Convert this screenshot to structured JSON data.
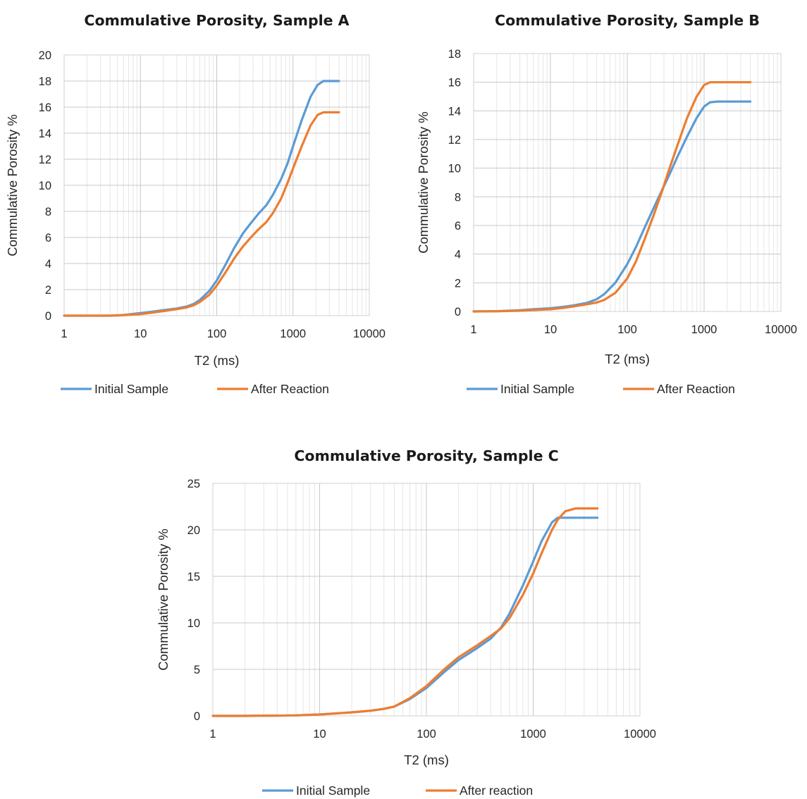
{
  "chart_data": [
    {
      "type": "line",
      "title": "Commulative Porosity, Sample A",
      "xlabel": "T2 (ms)",
      "ylabel": "Commulative Porosity %",
      "x_scale": "log",
      "xlim": [
        1,
        10000
      ],
      "ylim": [
        0,
        20
      ],
      "x_ticks": [
        "1",
        "10",
        "100",
        "1000",
        "10000"
      ],
      "y_ticks": [
        "0",
        "2",
        "4",
        "6",
        "8",
        "10",
        "12",
        "14",
        "16",
        "18",
        "20"
      ],
      "grid": true,
      "legend_position": "bottom",
      "series": [
        {
          "name": "Initial Sample",
          "color": "#5b9bd5",
          "x": [
            1,
            2,
            4,
            6,
            10,
            15,
            20,
            30,
            40,
            50,
            60,
            80,
            100,
            130,
            170,
            220,
            280,
            350,
            450,
            550,
            700,
            850,
            1000,
            1300,
            1700,
            2100,
            2500,
            3000,
            4000
          ],
          "y": [
            0,
            0,
            0,
            0.05,
            0.2,
            0.32,
            0.42,
            0.55,
            0.7,
            0.9,
            1.2,
            1.9,
            2.7,
            3.9,
            5.2,
            6.3,
            7.1,
            7.8,
            8.5,
            9.3,
            10.5,
            11.7,
            13.0,
            15.0,
            16.8,
            17.7,
            18.0,
            18.0,
            18.0
          ]
        },
        {
          "name": "After Reaction",
          "color": "#ed7d31",
          "x": [
            1,
            2,
            4,
            6,
            10,
            15,
            20,
            30,
            40,
            50,
            60,
            80,
            100,
            130,
            170,
            220,
            280,
            350,
            450,
            550,
            700,
            850,
            1000,
            1300,
            1700,
            2100,
            2500,
            3000,
            4000
          ],
          "y": [
            0,
            0,
            0,
            0.03,
            0.12,
            0.25,
            0.35,
            0.5,
            0.62,
            0.8,
            1.05,
            1.6,
            2.3,
            3.3,
            4.4,
            5.3,
            6.0,
            6.6,
            7.2,
            7.9,
            9.0,
            10.2,
            11.3,
            13.0,
            14.6,
            15.4,
            15.6,
            15.6,
            15.6
          ]
        }
      ]
    },
    {
      "type": "line",
      "title": "Commulative Porosity, Sample B",
      "xlabel": "T2 (ms)",
      "ylabel": "Commulative Porosity %",
      "x_scale": "log",
      "xlim": [
        1,
        10000
      ],
      "ylim": [
        0,
        18
      ],
      "x_ticks": [
        "1",
        "10",
        "100",
        "1000",
        "10000"
      ],
      "y_ticks": [
        "0",
        "2",
        "4",
        "6",
        "8",
        "10",
        "12",
        "14",
        "16",
        "18"
      ],
      "grid": true,
      "legend_position": "bottom",
      "series": [
        {
          "name": "Initial Sample",
          "color": "#5b9bd5",
          "x": [
            1,
            2,
            4,
            6,
            10,
            15,
            20,
            30,
            40,
            50,
            70,
            100,
            130,
            170,
            220,
            280,
            350,
            450,
            600,
            800,
            1000,
            1200,
            1500,
            2000,
            3000,
            4000
          ],
          "y": [
            0,
            0.02,
            0.08,
            0.15,
            0.22,
            0.33,
            0.42,
            0.6,
            0.85,
            1.2,
            2.0,
            3.3,
            4.5,
            5.9,
            7.2,
            8.4,
            9.5,
            10.8,
            12.2,
            13.5,
            14.3,
            14.6,
            14.65,
            14.65,
            14.65,
            14.65
          ]
        },
        {
          "name": "After Reaction",
          "color": "#ed7d31",
          "x": [
            1,
            2,
            4,
            6,
            10,
            15,
            20,
            30,
            40,
            50,
            70,
            100,
            130,
            170,
            220,
            280,
            350,
            450,
            600,
            800,
            1000,
            1200,
            1500,
            2000,
            3000,
            4000
          ],
          "y": [
            0,
            0.01,
            0.05,
            0.1,
            0.15,
            0.25,
            0.35,
            0.5,
            0.62,
            0.8,
            1.3,
            2.3,
            3.5,
            5.1,
            6.7,
            8.3,
            9.9,
            11.6,
            13.5,
            15.0,
            15.8,
            16.0,
            16.0,
            16.0,
            16.0,
            16.0
          ]
        }
      ]
    },
    {
      "type": "line",
      "title": "Commulative Porosity, Sample C",
      "xlabel": "T2 (ms)",
      "ylabel": "Commulative Porosity %",
      "x_scale": "log",
      "xlim": [
        1,
        10000
      ],
      "ylim": [
        0,
        25
      ],
      "x_ticks": [
        "1",
        "10",
        "100",
        "1000",
        "10000"
      ],
      "y_ticks": [
        "0",
        "5",
        "10",
        "15",
        "20",
        "25"
      ],
      "grid": true,
      "legend_position": "bottom",
      "series": [
        {
          "name": "Initial Sample",
          "color": "#5b9bd5",
          "x": [
            1,
            2,
            4,
            6,
            10,
            15,
            20,
            30,
            40,
            50,
            70,
            100,
            150,
            200,
            300,
            400,
            500,
            600,
            800,
            1000,
            1200,
            1500,
            1700,
            2000,
            2500,
            3000,
            4000
          ],
          "y": [
            0,
            0,
            0.02,
            0.05,
            0.15,
            0.28,
            0.38,
            0.55,
            0.75,
            1.0,
            1.8,
            3.0,
            4.8,
            6.0,
            7.3,
            8.3,
            9.5,
            11.0,
            14.0,
            16.6,
            18.8,
            20.8,
            21.3,
            21.3,
            21.3,
            21.3,
            21.3
          ]
        },
        {
          "name": "After reaction",
          "color": "#ed7d31",
          "x": [
            1,
            2,
            4,
            6,
            10,
            15,
            20,
            30,
            40,
            50,
            70,
            100,
            150,
            200,
            300,
            400,
            500,
            600,
            800,
            1000,
            1200,
            1500,
            1700,
            2000,
            2500,
            3000,
            4000
          ],
          "y": [
            0,
            0,
            0.02,
            0.05,
            0.15,
            0.28,
            0.38,
            0.55,
            0.75,
            1.0,
            1.9,
            3.2,
            5.1,
            6.3,
            7.6,
            8.6,
            9.4,
            10.5,
            13.0,
            15.3,
            17.5,
            20.0,
            21.1,
            22.0,
            22.3,
            22.3,
            22.3
          ]
        }
      ]
    }
  ]
}
